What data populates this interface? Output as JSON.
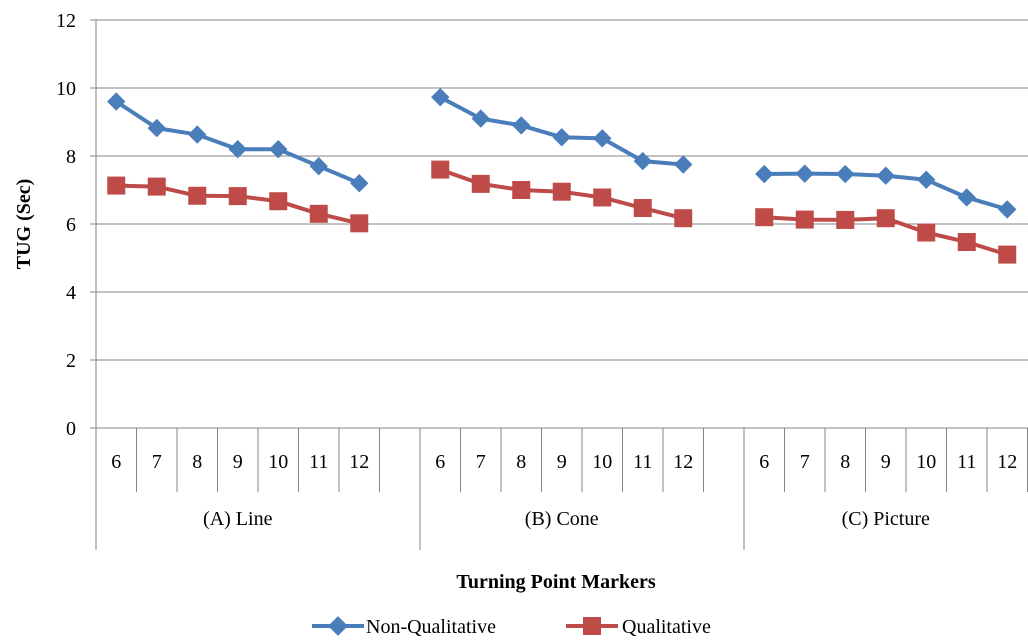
{
  "chart_data": {
    "type": "line",
    "xlabel": "Turning Point Markers",
    "ylabel": "TUG (Sec)",
    "ylim": [
      0,
      12
    ],
    "yticks": [
      "0",
      "2",
      "4",
      "6",
      "8",
      "10",
      "12"
    ],
    "grid": true,
    "legend_position": "bottom",
    "groups": [
      {
        "name": "(A) Line",
        "categories": [
          "6",
          "7",
          "8",
          "9",
          "10",
          "11",
          "12"
        ]
      },
      {
        "name": "(B) Cone",
        "categories": [
          "6",
          "7",
          "8",
          "9",
          "10",
          "11",
          "12"
        ]
      },
      {
        "name": "(C) Picture",
        "categories": [
          "6",
          "7",
          "8",
          "9",
          "10",
          "11",
          "12"
        ]
      }
    ],
    "series": [
      {
        "name": "Non-Qualitative",
        "color": "#4A7EBB",
        "marker": "diamond",
        "values": [
          [
            9.6,
            8.82,
            8.63,
            8.2,
            8.2,
            7.7,
            7.2
          ],
          [
            9.73,
            9.1,
            8.9,
            8.55,
            8.52,
            7.85,
            7.75
          ],
          [
            7.47,
            7.48,
            7.47,
            7.42,
            7.3,
            6.78,
            6.43
          ]
        ]
      },
      {
        "name": "Qualitative",
        "color": "#BE4B48",
        "marker": "square",
        "values": [
          [
            7.13,
            7.1,
            6.83,
            6.82,
            6.67,
            6.3,
            6.02
          ],
          [
            7.6,
            7.18,
            7.0,
            6.95,
            6.78,
            6.47,
            6.17
          ],
          [
            6.2,
            6.13,
            6.12,
            6.17,
            5.75,
            5.47,
            5.1
          ]
        ]
      }
    ]
  }
}
